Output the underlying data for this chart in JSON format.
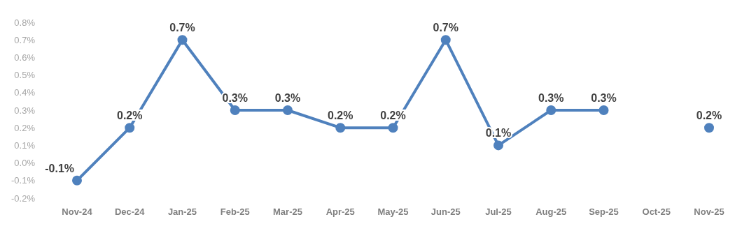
{
  "chart_data": {
    "type": "line",
    "categories": [
      "Nov-24",
      "Dec-24",
      "Jan-25",
      "Feb-25",
      "Mar-25",
      "Apr-25",
      "May-25",
      "Jun-25",
      "Jul-25",
      "Aug-25",
      "Sep-25",
      "Oct-25",
      "Nov-25"
    ],
    "series": [
      {
        "color": "#4f81bd",
        "values": [
          -0.1,
          0.2,
          0.7,
          0.3,
          0.3,
          0.2,
          0.2,
          0.7,
          0.1,
          0.3,
          0.3,
          null,
          0.2
        ],
        "value_labels": [
          "-0.1%",
          "0.2%",
          "0.7%",
          "0.3%",
          "0.3%",
          "0.2%",
          "0.2%",
          "0.7%",
          "0.1%",
          "0.3%",
          "0.3%",
          null,
          "0.2%"
        ]
      }
    ],
    "ylim": [
      -0.2,
      0.8
    ],
    "yticks": [
      {
        "value": -0.2,
        "label": "-0.2%"
      },
      {
        "value": -0.1,
        "label": "-0.1%"
      },
      {
        "value": 0,
        "label": "0.0%"
      },
      {
        "value": 0.1,
        "label": "0.1%"
      },
      {
        "value": 0.2,
        "label": "0.2%"
      },
      {
        "value": 0.3,
        "label": "0.3%"
      },
      {
        "value": 0.4,
        "label": "0.4%"
      },
      {
        "value": 0.5,
        "label": "0.5%"
      },
      {
        "value": 0.6,
        "label": "0.6%"
      },
      {
        "value": 0.7,
        "label": "0.7%"
      },
      {
        "value": 0.8,
        "label": "0.8%"
      }
    ],
    "grid": false,
    "legend": false,
    "marker": "circle",
    "line_style": "solid"
  }
}
